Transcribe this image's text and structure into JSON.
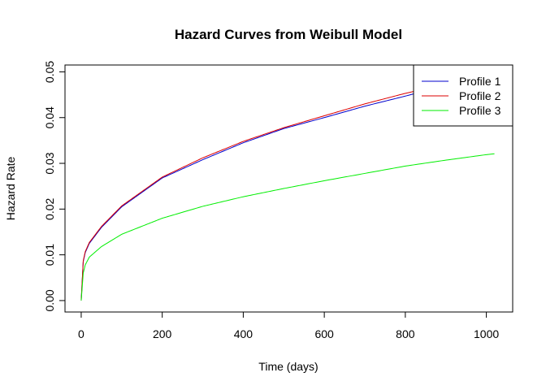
{
  "chart_data": {
    "type": "line",
    "title": "Hazard Curves from Weibull Model",
    "xlabel": "Time (days)",
    "ylabel": "Hazard Rate",
    "xlim": [
      0,
      1020
    ],
    "ylim": [
      0,
      0.05
    ],
    "xticks": [
      0,
      200,
      400,
      600,
      800,
      1000
    ],
    "yticks": [
      0.0,
      0.01,
      0.02,
      0.03,
      0.04,
      0.05
    ],
    "xtick_labels": [
      "0",
      "200",
      "400",
      "600",
      "800",
      "1000"
    ],
    "ytick_labels": [
      "0.00",
      "0.01",
      "0.02",
      "0.03",
      "0.04",
      "0.05"
    ],
    "grid": false,
    "legend_position": "top-right",
    "series": [
      {
        "name": "Profile 1",
        "color": "#0000cc",
        "x": [
          0,
          5,
          10,
          20,
          50,
          100,
          200,
          300,
          400,
          500,
          600,
          700,
          800,
          830
        ],
        "y": [
          0.0,
          0.0085,
          0.0105,
          0.0125,
          0.016,
          0.0205,
          0.0268,
          0.0308,
          0.0345,
          0.0376,
          0.04,
          0.0425,
          0.0447,
          0.0454
        ]
      },
      {
        "name": "Profile 2",
        "color": "#dd0000",
        "x": [
          0,
          5,
          10,
          20,
          50,
          100,
          200,
          300,
          400,
          500,
          600,
          700,
          800,
          830
        ],
        "y": [
          0.0,
          0.0087,
          0.0107,
          0.0127,
          0.0162,
          0.0207,
          0.027,
          0.0312,
          0.0348,
          0.0378,
          0.0404,
          0.043,
          0.0453,
          0.0459
        ]
      },
      {
        "name": "Profile 3",
        "color": "#00ee00",
        "x": [
          0,
          5,
          10,
          20,
          50,
          100,
          200,
          300,
          400,
          500,
          600,
          700,
          800,
          900,
          1000,
          1020
        ],
        "y": [
          0.0,
          0.006,
          0.0078,
          0.0095,
          0.0118,
          0.0145,
          0.018,
          0.0206,
          0.0227,
          0.0245,
          0.0262,
          0.0278,
          0.0294,
          0.0307,
          0.0319,
          0.0321
        ]
      }
    ]
  }
}
